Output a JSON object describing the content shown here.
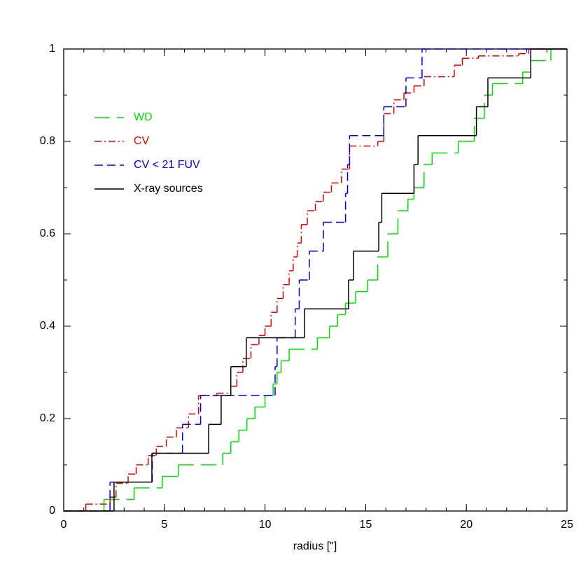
{
  "chart_data": {
    "type": "step",
    "xlabel": "radius [\"]",
    "xlim": [
      0,
      25
    ],
    "xticks": [
      0,
      5,
      10,
      15,
      20,
      25
    ],
    "ylim": [
      0,
      1
    ],
    "yticks": [
      0,
      0.2,
      0.4,
      0.6,
      0.8,
      1
    ],
    "legend": "upper left",
    "series": [
      {
        "name": "WD",
        "color": "#00e000",
        "linestyle": "longdash",
        "x": [
          0,
          2.0,
          3.5,
          4.9,
          5.7,
          7.9,
          8.3,
          8.7,
          9.1,
          9.5,
          10.0,
          10.4,
          10.6,
          10.8,
          11.2,
          12.6,
          13.2,
          13.6,
          14.0,
          14.5,
          15.1,
          15.6,
          16.1,
          16.6,
          17.1,
          17.4,
          17.9,
          18.3,
          19.6,
          20.4,
          20.9,
          21.3,
          22.8,
          23.2,
          24.2,
          25
        ],
        "values": [
          0,
          0.025,
          0.05,
          0.075,
          0.1,
          0.125,
          0.15,
          0.175,
          0.2,
          0.225,
          0.25,
          0.275,
          0.3,
          0.325,
          0.35,
          0.375,
          0.4,
          0.425,
          0.45,
          0.475,
          0.5,
          0.55,
          0.6,
          0.65,
          0.675,
          0.7,
          0.75,
          0.775,
          0.8,
          0.85,
          0.9,
          0.925,
          0.95,
          0.975,
          1,
          1
        ]
      },
      {
        "name": "CV",
        "color": "#e00000",
        "linestyle": "dashdot",
        "x": [
          0,
          1.1,
          2.3,
          2.6,
          3.2,
          3.6,
          4.2,
          4.6,
          5.1,
          5.6,
          6.2,
          6.7,
          7.6,
          8.3,
          8.6,
          8.9,
          9.3,
          9.7,
          10.0,
          10.3,
          10.6,
          10.9,
          11.2,
          11.4,
          11.6,
          11.8,
          12.1,
          12.5,
          12.9,
          13.3,
          13.8,
          14.2,
          15.6,
          15.9,
          16.4,
          16.9,
          17.4,
          17.9,
          19.4,
          19.8,
          20.6,
          22.6,
          23.1,
          25
        ],
        "values": [
          0,
          0.015,
          0.03,
          0.06,
          0.08,
          0.1,
          0.12,
          0.14,
          0.16,
          0.18,
          0.21,
          0.25,
          0.255,
          0.27,
          0.3,
          0.33,
          0.36,
          0.38,
          0.4,
          0.43,
          0.46,
          0.49,
          0.52,
          0.55,
          0.58,
          0.62,
          0.65,
          0.67,
          0.69,
          0.71,
          0.74,
          0.79,
          0.8,
          0.86,
          0.89,
          0.905,
          0.92,
          0.94,
          0.965,
          0.98,
          0.985,
          0.99,
          1,
          1
        ]
      },
      {
        "name": "CV < 21 FUV",
        "color": "#0000e0",
        "linestyle": "dashed",
        "x": [
          0,
          2.3,
          4.4,
          5.9,
          6.8,
          10.5,
          10.6,
          11.5,
          11.7,
          12.2,
          12.9,
          14.0,
          14.1,
          14.2,
          15.9,
          17.0,
          17.8,
          25
        ],
        "values": [
          0,
          0.0625,
          0.125,
          0.1875,
          0.25,
          0.3125,
          0.375,
          0.4375,
          0.5,
          0.5625,
          0.625,
          0.6875,
          0.75,
          0.8125,
          0.875,
          0.9375,
          1,
          1
        ]
      },
      {
        "name": "X-ray sources",
        "color": "#000000",
        "linestyle": "solid",
        "x": [
          0,
          2.5,
          4.38,
          7.2,
          7.82,
          8.3,
          9.07,
          11.96,
          14.15,
          14.4,
          15.65,
          15.8,
          17.4,
          17.6,
          20.5,
          21.07,
          23.2,
          25
        ],
        "values": [
          0,
          0.0625,
          0.125,
          0.1875,
          0.25,
          0.3125,
          0.375,
          0.4375,
          0.5,
          0.5625,
          0.625,
          0.6875,
          0.75,
          0.8125,
          0.875,
          0.9375,
          1,
          1
        ]
      }
    ]
  }
}
